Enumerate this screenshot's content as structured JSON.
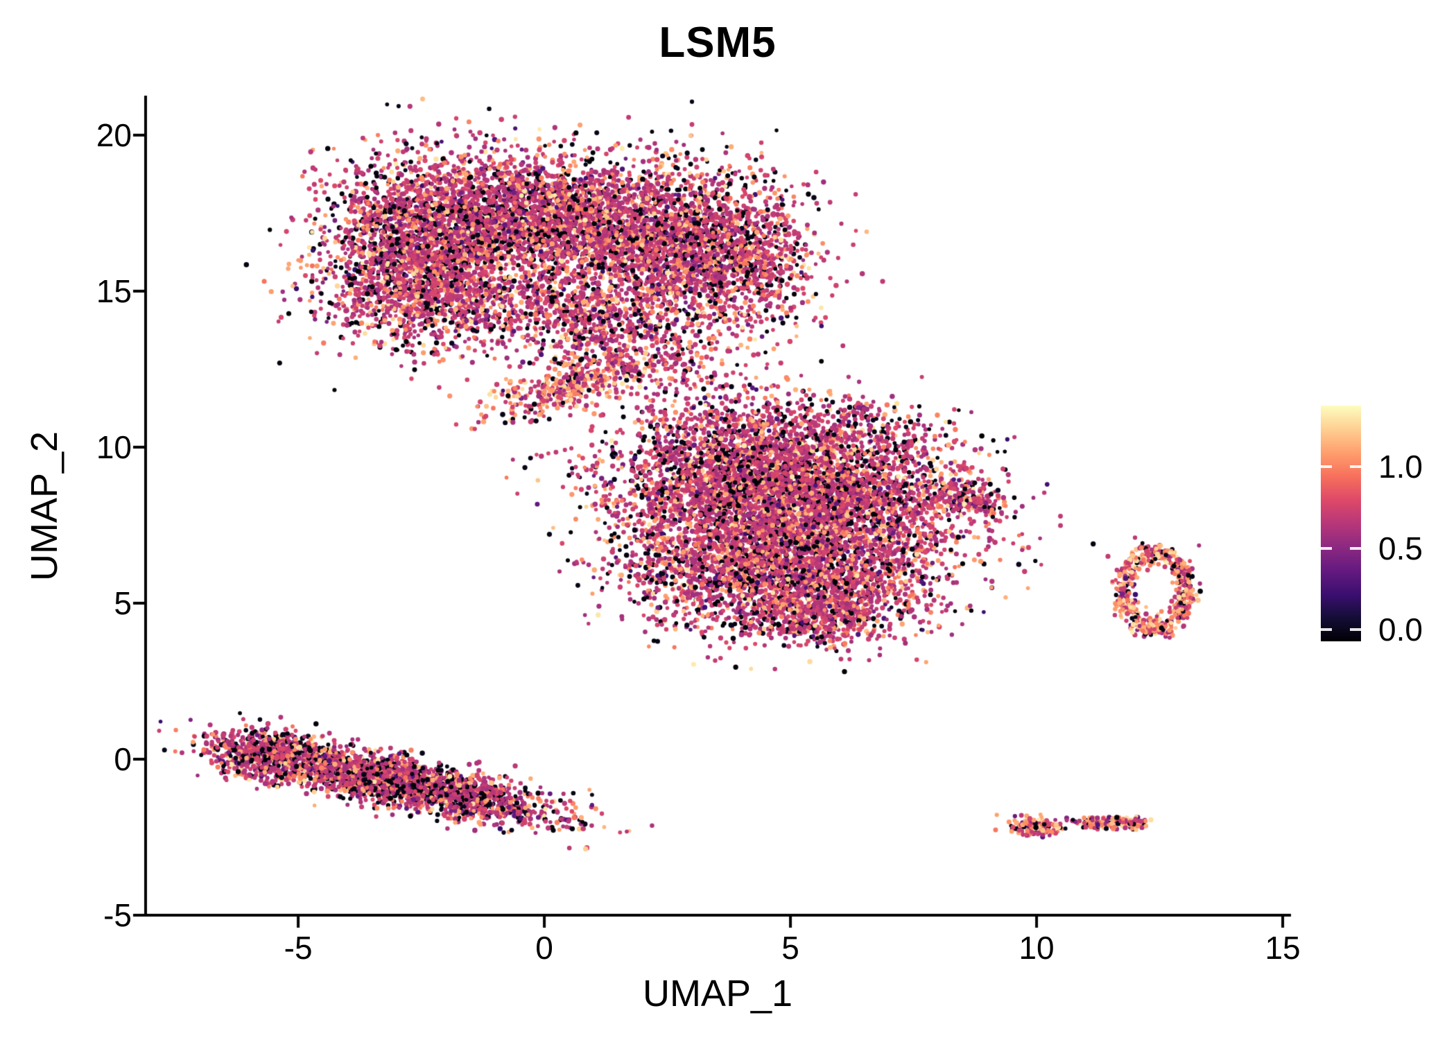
{
  "chart_data": {
    "type": "scatter",
    "title": "LSM5",
    "xlabel": "UMAP_1",
    "ylabel": "UMAP_2",
    "x_ticks": [
      -5,
      0,
      5,
      10,
      15
    ],
    "y_ticks": [
      -5,
      0,
      5,
      10,
      15,
      20
    ],
    "xlim": [
      -8.1,
      15.14
    ],
    "ylim": [
      -5,
      21.22
    ],
    "grid": false,
    "background": "#ffffff",
    "axis_color": "#000000",
    "point_radius_px": 3,
    "colorbar": {
      "position": "right",
      "ticks": [
        "1.0",
        "0.5",
        "0.0"
      ],
      "tick_values": [
        1.0,
        0.5,
        0.0
      ],
      "value_min": 0.0,
      "value_max": 1.37,
      "colormap": "magma",
      "colormap_stops": [
        {
          "t": 0.0,
          "color": "#000004"
        },
        {
          "t": 0.1,
          "color": "#140e36"
        },
        {
          "t": 0.2,
          "color": "#3b0f70"
        },
        {
          "t": 0.3,
          "color": "#641a80"
        },
        {
          "t": 0.4,
          "color": "#8c2981"
        },
        {
          "t": 0.5,
          "color": "#b73779"
        },
        {
          "t": 0.6,
          "color": "#de4968"
        },
        {
          "t": 0.7,
          "color": "#f7705c"
        },
        {
          "t": 0.8,
          "color": "#fe9f6d"
        },
        {
          "t": 0.9,
          "color": "#fecf92"
        },
        {
          "t": 1.0,
          "color": "#fcfdbf"
        }
      ]
    },
    "point_classes": {
      "black": [
        0.0,
        0.05
      ],
      "purple": [
        0.18,
        0.4
      ],
      "magenta": [
        0.44,
        0.6
      ],
      "orange": [
        0.7,
        0.85
      ],
      "light": [
        0.86,
        0.97
      ]
    },
    "mixes": {
      "default": {
        "black": 0.16,
        "purple": 0.05,
        "magenta": 0.58,
        "orange": 0.17,
        "light": 0.04
      },
      "dark": {
        "black": 0.24,
        "purple": 0.05,
        "magenta": 0.53,
        "orange": 0.15,
        "light": 0.03
      },
      "bright": {
        "black": 0.1,
        "purple": 0.03,
        "magenta": 0.35,
        "orange": 0.38,
        "light": 0.14
      },
      "neck": {
        "black": 0.07,
        "purple": 0.04,
        "magenta": 0.4,
        "orange": 0.36,
        "light": 0.13
      }
    },
    "clusters": [
      {
        "name": "upper-left-lobe",
        "shape": "gauss",
        "cx": -2.4,
        "cy": 16.4,
        "sx": 1.05,
        "sy": 1.45,
        "rot": 0,
        "n": 2600,
        "mix": "default"
      },
      {
        "name": "upper-mid-lobe",
        "shape": "gauss",
        "cx": -0.2,
        "cy": 17.5,
        "sx": 1.15,
        "sy": 1.0,
        "rot": 0,
        "n": 1700,
        "mix": "default"
      },
      {
        "name": "upper-right-lobe",
        "shape": "gauss",
        "cx": 1.9,
        "cy": 16.8,
        "sx": 1.2,
        "sy": 1.15,
        "rot": 0,
        "n": 1700,
        "mix": "default"
      },
      {
        "name": "upper-far-right-lobe",
        "shape": "gauss",
        "cx": 3.7,
        "cy": 16.1,
        "sx": 0.95,
        "sy": 1.3,
        "rot": 0,
        "n": 1400,
        "mix": "default"
      },
      {
        "name": "upper-bottom-edge",
        "shape": "gauss",
        "cx": -1.5,
        "cy": 14.6,
        "sx": 1.4,
        "sy": 0.6,
        "rot": 0,
        "n": 500,
        "mix": "default"
      },
      {
        "name": "bridge-upper",
        "shape": "gauss",
        "cx": 1.2,
        "cy": 14.0,
        "sx": 0.85,
        "sy": 0.8,
        "rot": -20,
        "n": 600,
        "mix": "default"
      },
      {
        "name": "bridge-neck",
        "shape": "gauss",
        "cx": 0.55,
        "cy": 11.95,
        "sx": 0.95,
        "sy": 0.33,
        "rot": 25,
        "n": 430,
        "mix": "neck"
      },
      {
        "name": "bridge-sparse",
        "shape": "gauss",
        "cx": 2.4,
        "cy": 12.7,
        "sx": 0.8,
        "sy": 0.6,
        "rot": 0,
        "n": 110,
        "mix": "default"
      },
      {
        "name": "central-upper-left",
        "shape": "gauss",
        "cx": 4.1,
        "cy": 9.0,
        "sx": 1.45,
        "sy": 1.15,
        "rot": 0,
        "n": 2700,
        "mix": "default"
      },
      {
        "name": "central-right",
        "shape": "gauss",
        "cx": 6.2,
        "cy": 7.9,
        "sx": 1.35,
        "sy": 1.3,
        "rot": 0,
        "n": 2300,
        "mix": "default"
      },
      {
        "name": "central-lower-left",
        "shape": "gauss",
        "cx": 3.9,
        "cy": 6.2,
        "sx": 1.25,
        "sy": 1.05,
        "rot": 0,
        "n": 1700,
        "mix": "default"
      },
      {
        "name": "central-bottom",
        "shape": "gauss",
        "cx": 5.8,
        "cy": 5.3,
        "sx": 1.0,
        "sy": 0.75,
        "rot": -15,
        "n": 900,
        "mix": "default"
      },
      {
        "name": "central-top-sparse",
        "shape": "gauss",
        "cx": 5.0,
        "cy": 10.7,
        "sx": 1.5,
        "sy": 0.55,
        "rot": 0,
        "n": 320,
        "mix": "default"
      },
      {
        "name": "central-right-clump",
        "shape": "gauss",
        "cx": 8.6,
        "cy": 8.3,
        "sx": 0.35,
        "sy": 0.22,
        "rot": -20,
        "n": 170,
        "mix": "default"
      },
      {
        "name": "central-bottom-tail",
        "shape": "gauss",
        "cx": 5.4,
        "cy": 4.4,
        "sx": 0.55,
        "sy": 0.35,
        "rot": 0,
        "n": 200,
        "mix": "default"
      },
      {
        "name": "right-ring",
        "shape": "ring",
        "cx": 12.4,
        "cy": 5.4,
        "r": 0.78,
        "rsd": 0.12,
        "ex": 0.85,
        "ey": 1.55,
        "n": 560,
        "mix": "bright"
      },
      {
        "name": "lower-left-streak",
        "shape": "gauss",
        "cx": -2.9,
        "cy": -0.75,
        "sx": 1.65,
        "sy": 0.36,
        "rot": -19,
        "n": 2500,
        "mix": "dark"
      },
      {
        "name": "lower-left-head",
        "shape": "gauss",
        "cx": -5.6,
        "cy": 0.1,
        "sx": 0.55,
        "sy": 0.38,
        "rot": -15,
        "n": 550,
        "mix": "dark"
      },
      {
        "name": "lower-right-dot-a",
        "shape": "gauss",
        "cx": 9.9,
        "cy": -2.15,
        "sx": 0.27,
        "sy": 0.16,
        "rot": -10,
        "n": 140,
        "mix": "bright"
      },
      {
        "name": "lower-right-dot-b",
        "shape": "gauss",
        "cx": 11.3,
        "cy": -2.05,
        "sx": 0.32,
        "sy": 0.11,
        "rot": -5,
        "n": 110,
        "mix": "bright"
      },
      {
        "name": "lower-right-dot-c",
        "shape": "gauss",
        "cx": 11.95,
        "cy": -2.05,
        "sx": 0.16,
        "sy": 0.1,
        "rot": 0,
        "n": 60,
        "mix": "bright"
      }
    ],
    "outlier_points": [
      [
        11.15,
        6.9
      ],
      [
        11.45,
        6.5
      ],
      [
        13.3,
        6.85
      ],
      [
        12.0,
        7.1
      ],
      [
        5.6,
        3.75
      ],
      [
        9.25,
        8.05
      ],
      [
        3.1,
        12.4
      ],
      [
        0.1,
        10.9
      ]
    ]
  }
}
